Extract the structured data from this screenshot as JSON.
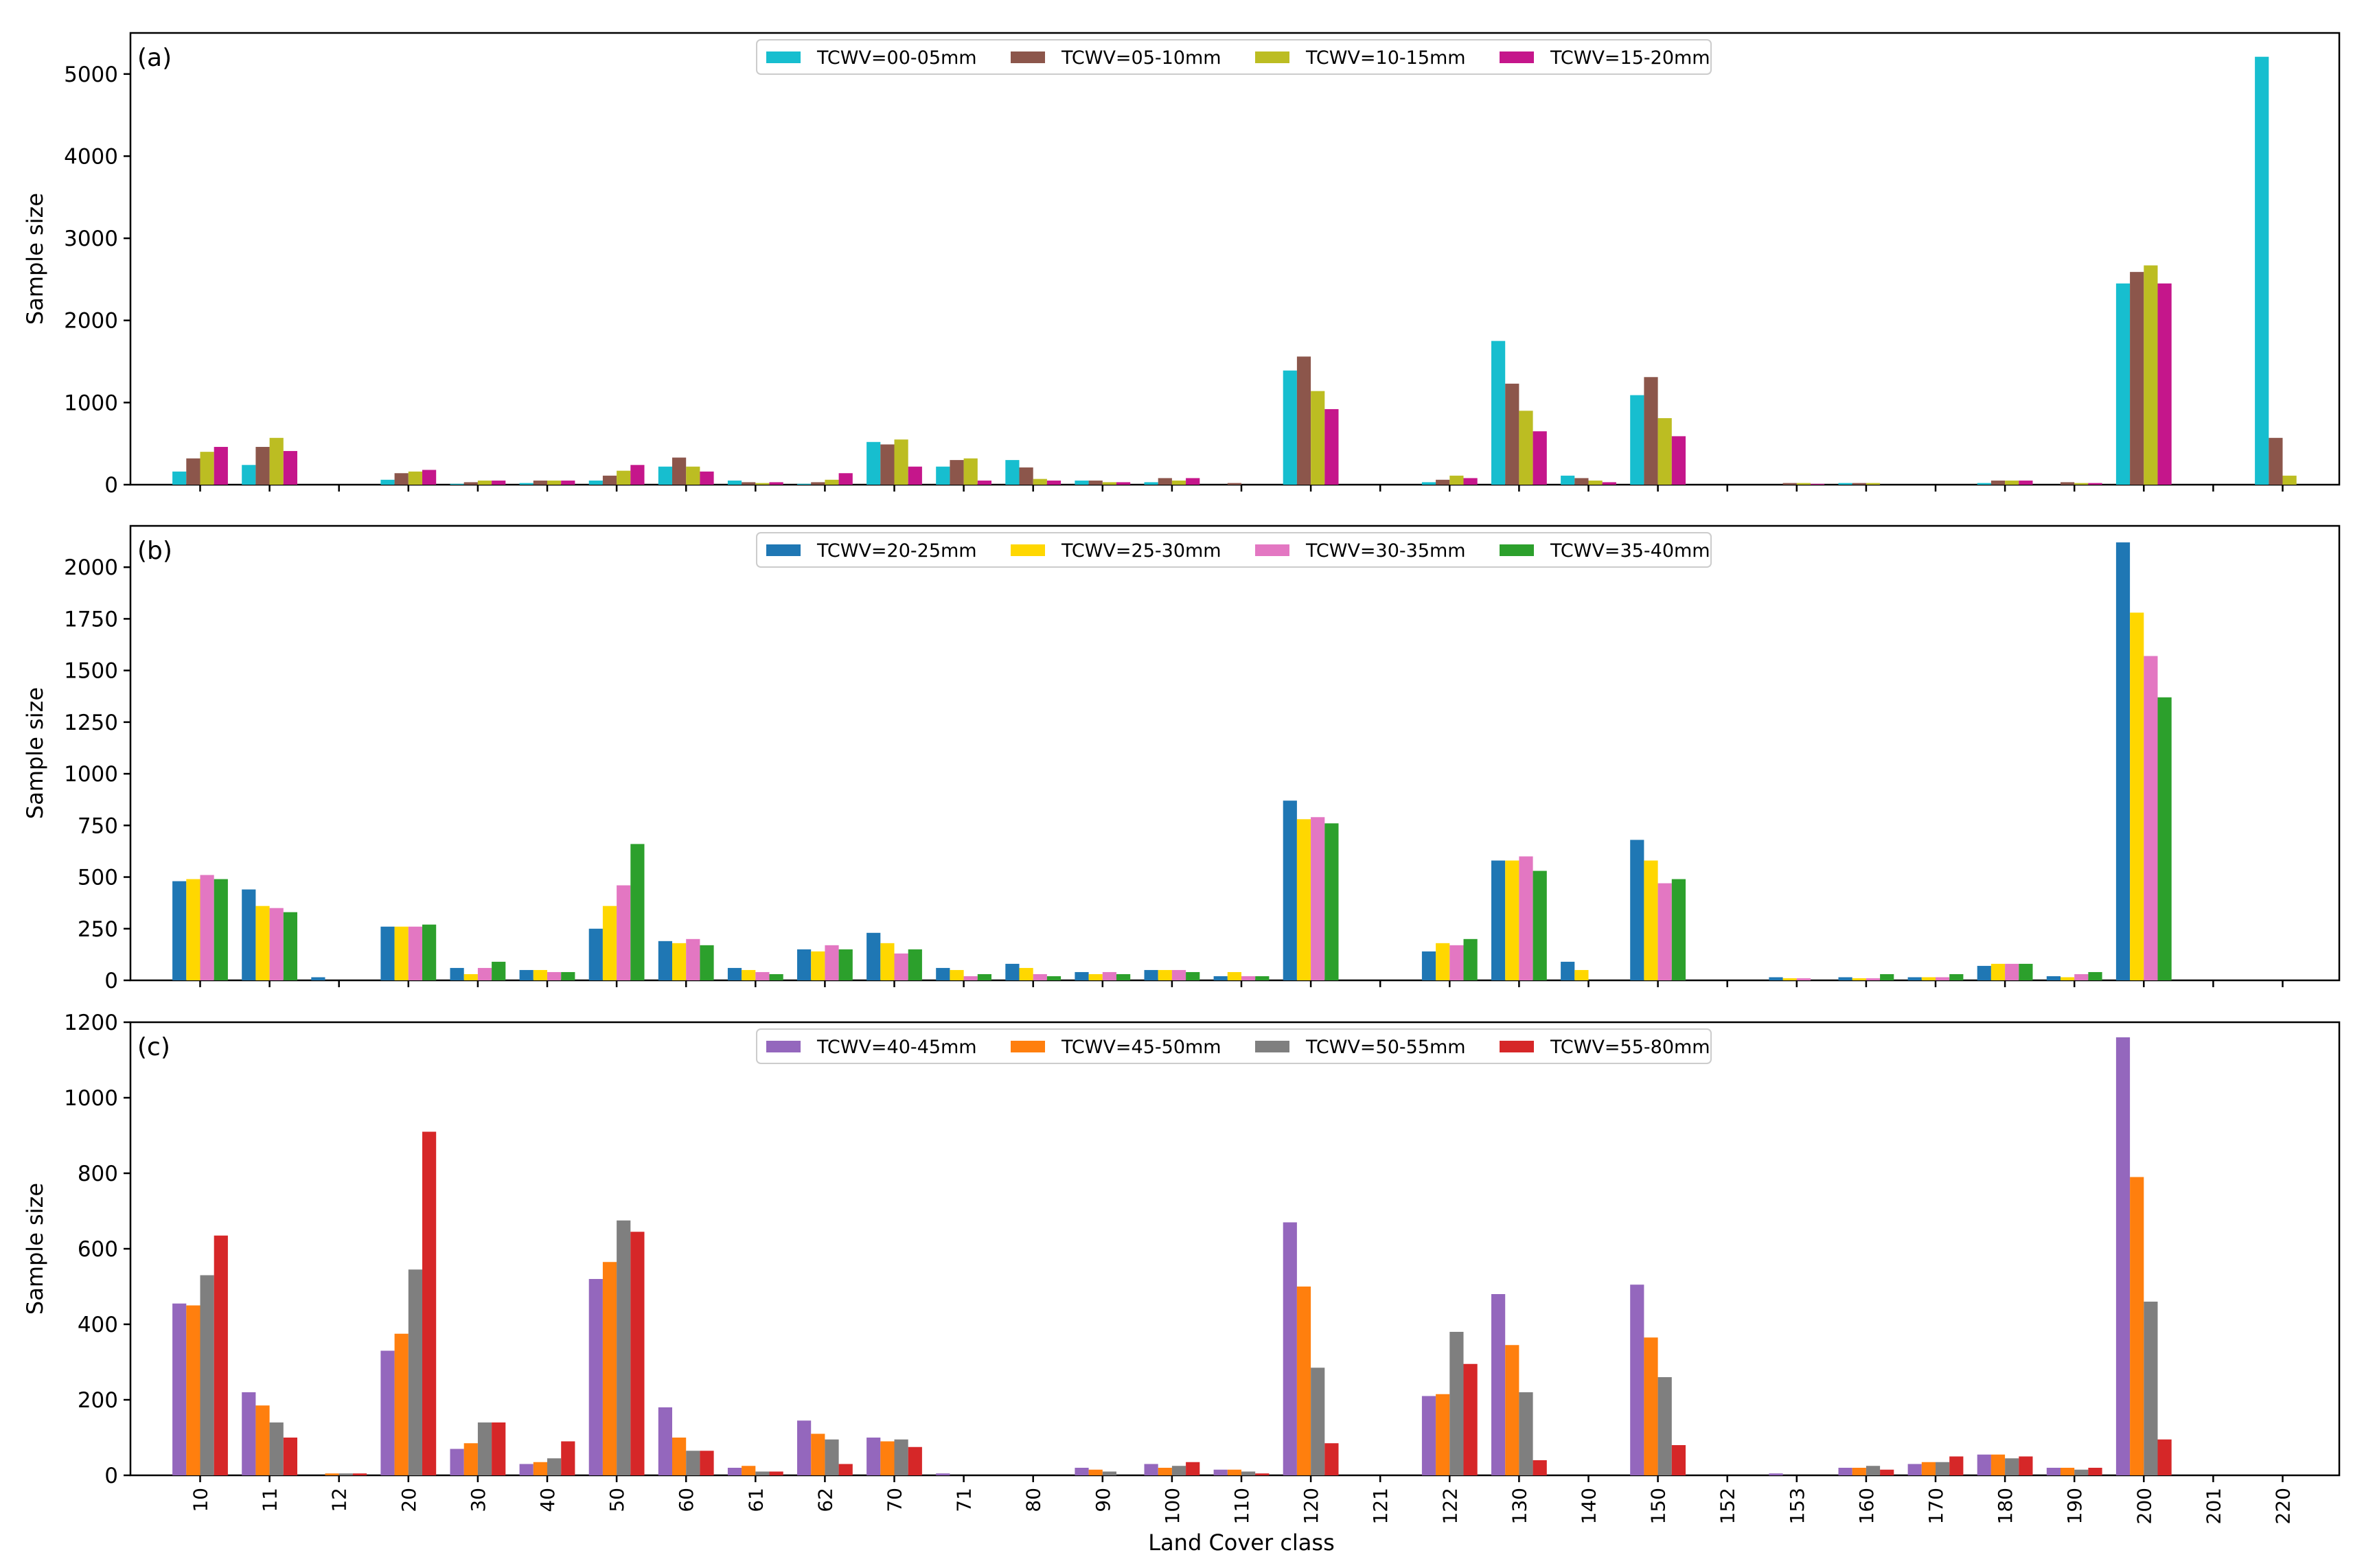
{
  "figure": {
    "xlabel": "Land Cover class",
    "xtick_labels": [
      "10",
      "11",
      "12",
      "20",
      "30",
      "40",
      "50",
      "60",
      "61",
      "62",
      "70",
      "71",
      "80",
      "90",
      "100",
      "110",
      "120",
      "121",
      "122",
      "130",
      "140",
      "150",
      "152",
      "153",
      "160",
      "170",
      "180",
      "190",
      "200",
      "201",
      "220"
    ]
  },
  "chart_data": [
    {
      "type": "bar",
      "panel_label": "(a)",
      "ylabel": "Sample size",
      "ylim": [
        0,
        5500
      ],
      "yticks": [
        0,
        1000,
        2000,
        3000,
        4000,
        5000
      ],
      "legend_position": "top-center",
      "categories": [
        "10",
        "11",
        "12",
        "20",
        "30",
        "40",
        "50",
        "60",
        "61",
        "62",
        "70",
        "71",
        "80",
        "90",
        "100",
        "110",
        "120",
        "121",
        "122",
        "130",
        "140",
        "150",
        "152",
        "153",
        "160",
        "170",
        "180",
        "190",
        "200",
        "201",
        "220"
      ],
      "series": [
        {
          "name": "TCWV=00-05mm",
          "color": "#17becf",
          "values": [
            160,
            240,
            0,
            60,
            10,
            20,
            50,
            220,
            50,
            10,
            520,
            220,
            300,
            50,
            30,
            0,
            1390,
            0,
            30,
            1750,
            110,
            1090,
            0,
            0,
            20,
            0,
            20,
            0,
            2450,
            0,
            5210
          ]
        },
        {
          "name": "TCWV=05-10mm",
          "color": "#8c564b",
          "values": [
            320,
            460,
            0,
            140,
            30,
            50,
            110,
            330,
            30,
            30,
            490,
            300,
            210,
            50,
            80,
            20,
            1560,
            0,
            60,
            1230,
            80,
            1310,
            0,
            20,
            20,
            0,
            50,
            30,
            2590,
            0,
            570
          ]
        },
        {
          "name": "TCWV=10-15mm",
          "color": "#bcbd22",
          "values": [
            400,
            570,
            0,
            160,
            50,
            50,
            170,
            220,
            20,
            60,
            550,
            320,
            70,
            30,
            50,
            0,
            1140,
            0,
            110,
            900,
            50,
            810,
            0,
            20,
            20,
            0,
            50,
            20,
            2670,
            0,
            110
          ]
        },
        {
          "name": "TCWV=15-20mm",
          "color": "#c5168b",
          "values": [
            460,
            410,
            0,
            180,
            50,
            50,
            240,
            160,
            30,
            140,
            220,
            50,
            50,
            30,
            80,
            0,
            920,
            0,
            80,
            650,
            30,
            590,
            0,
            10,
            0,
            0,
            50,
            20,
            2450,
            0,
            0
          ]
        }
      ]
    },
    {
      "type": "bar",
      "panel_label": "(b)",
      "ylabel": "Sample size",
      "ylim": [
        0,
        2200
      ],
      "yticks": [
        0,
        250,
        500,
        750,
        1000,
        1250,
        1500,
        1750,
        2000
      ],
      "legend_position": "top-center",
      "categories": [
        "10",
        "11",
        "12",
        "20",
        "30",
        "40",
        "50",
        "60",
        "61",
        "62",
        "70",
        "71",
        "80",
        "90",
        "100",
        "110",
        "120",
        "121",
        "122",
        "130",
        "140",
        "150",
        "152",
        "153",
        "160",
        "170",
        "180",
        "190",
        "200",
        "201",
        "220"
      ],
      "series": [
        {
          "name": "TCWV=20-25mm",
          "color": "#1f77b4",
          "values": [
            480,
            440,
            15,
            260,
            60,
            50,
            250,
            190,
            60,
            150,
            230,
            60,
            80,
            40,
            50,
            20,
            870,
            0,
            140,
            580,
            90,
            680,
            0,
            15,
            15,
            15,
            70,
            20,
            2120,
            0,
            0
          ]
        },
        {
          "name": "TCWV=25-30mm",
          "color": "#ffd700",
          "values": [
            490,
            360,
            0,
            260,
            30,
            50,
            360,
            180,
            50,
            140,
            180,
            50,
            60,
            30,
            50,
            40,
            780,
            0,
            180,
            580,
            50,
            580,
            0,
            10,
            10,
            15,
            80,
            15,
            1780,
            0,
            0
          ]
        },
        {
          "name": "TCWV=30-35mm",
          "color": "#e377c2",
          "values": [
            510,
            350,
            0,
            260,
            60,
            40,
            460,
            200,
            40,
            170,
            130,
            20,
            30,
            40,
            50,
            20,
            790,
            0,
            170,
            600,
            0,
            470,
            0,
            10,
            10,
            15,
            80,
            30,
            1570,
            0,
            0
          ]
        },
        {
          "name": "TCWV=35-40mm",
          "color": "#2ca02c",
          "values": [
            490,
            330,
            0,
            270,
            90,
            40,
            660,
            170,
            30,
            150,
            150,
            30,
            20,
            30,
            40,
            20,
            760,
            0,
            200,
            530,
            0,
            490,
            0,
            0,
            30,
            30,
            80,
            40,
            1370,
            0,
            0
          ]
        }
      ]
    },
    {
      "type": "bar",
      "panel_label": "(c)",
      "ylabel": "Sample size",
      "ylim": [
        0,
        1200
      ],
      "yticks": [
        0,
        200,
        400,
        600,
        800,
        1000,
        1200
      ],
      "legend_position": "top-center",
      "categories": [
        "10",
        "11",
        "12",
        "20",
        "30",
        "40",
        "50",
        "60",
        "61",
        "62",
        "70",
        "71",
        "80",
        "90",
        "100",
        "110",
        "120",
        "121",
        "122",
        "130",
        "140",
        "150",
        "152",
        "153",
        "160",
        "170",
        "180",
        "190",
        "200",
        "201",
        "220"
      ],
      "series": [
        {
          "name": "TCWV=40-45mm",
          "color": "#9467bd",
          "values": [
            455,
            220,
            0,
            330,
            70,
            30,
            520,
            180,
            20,
            145,
            100,
            5,
            0,
            20,
            30,
            15,
            670,
            0,
            210,
            480,
            0,
            505,
            0,
            5,
            20,
            30,
            55,
            20,
            1160,
            0,
            0
          ]
        },
        {
          "name": "TCWV=45-50mm",
          "color": "#ff7f0e",
          "values": [
            450,
            185,
            5,
            375,
            85,
            35,
            565,
            100,
            25,
            110,
            90,
            0,
            0,
            15,
            20,
            15,
            500,
            0,
            215,
            345,
            0,
            365,
            0,
            0,
            20,
            35,
            55,
            20,
            790,
            0,
            0
          ]
        },
        {
          "name": "TCWV=50-55mm",
          "color": "#7f7f7f",
          "values": [
            530,
            140,
            5,
            545,
            140,
            45,
            675,
            65,
            10,
            95,
            95,
            0,
            0,
            10,
            25,
            10,
            285,
            0,
            380,
            220,
            0,
            260,
            0,
            0,
            25,
            35,
            45,
            15,
            460,
            0,
            0
          ]
        },
        {
          "name": "TCWV=55-80mm",
          "color": "#d62728",
          "values": [
            635,
            100,
            5,
            910,
            140,
            90,
            645,
            65,
            10,
            30,
            75,
            0,
            0,
            0,
            35,
            5,
            85,
            0,
            295,
            40,
            0,
            80,
            0,
            0,
            15,
            50,
            50,
            20,
            95,
            0,
            0
          ]
        }
      ]
    }
  ]
}
